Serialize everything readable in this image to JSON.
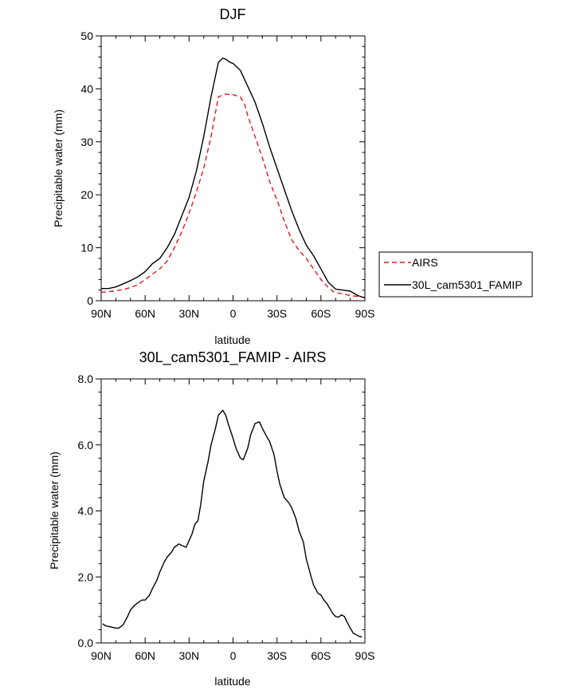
{
  "chart_data": [
    {
      "type": "line",
      "title": "DJF",
      "xlabel": "latitude",
      "ylabel": "Precipitable water (mm)",
      "xlim": [
        90,
        -90
      ],
      "ylim": [
        0,
        50
      ],
      "x_ticks": [
        90,
        60,
        30,
        0,
        -30,
        -60,
        -90
      ],
      "x_tick_labels": [
        "90N",
        "60N",
        "30N",
        "0",
        "30S",
        "60S",
        "90S"
      ],
      "y_ticks": [
        0,
        10,
        20,
        30,
        40,
        50
      ],
      "y_tick_labels": [
        "0",
        "10",
        "20",
        "30",
        "40",
        "50"
      ],
      "legend": {
        "placement": "right"
      },
      "series": [
        {
          "name": "AIRS",
          "color": "#e0191e",
          "dashed": true,
          "x": [
            90,
            85,
            80,
            75,
            70,
            65,
            60,
            55,
            50,
            45,
            40,
            35,
            30,
            25,
            20,
            15,
            10,
            5,
            2,
            0,
            -5,
            -8,
            -10,
            -15,
            -20,
            -25,
            -30,
            -35,
            -40,
            -45,
            -50,
            -55,
            -60,
            -65,
            -68,
            -70,
            -75,
            -80,
            -85,
            -88,
            -90
          ],
          "values": [
            1.6,
            1.7,
            1.9,
            2.1,
            2.5,
            3.0,
            4.0,
            5.0,
            6.0,
            7.5,
            10.0,
            13.0,
            16.5,
            20.5,
            25.0,
            31.0,
            38.5,
            39.0,
            38.9,
            38.9,
            38.5,
            37.0,
            35.0,
            31.0,
            27.0,
            22.5,
            19.0,
            15.0,
            11.5,
            9.5,
            8.0,
            6.0,
            4.0,
            2.5,
            1.8,
            1.5,
            1.3,
            1.0,
            0.8,
            0.7,
            0.6
          ]
        },
        {
          "name": "30L_cam5301_FAMIP",
          "color": "#000000",
          "dashed": false,
          "x": [
            90,
            85,
            80,
            75,
            70,
            65,
            60,
            55,
            50,
            45,
            40,
            35,
            30,
            25,
            20,
            15,
            10,
            7,
            5,
            2,
            0,
            -5,
            -10,
            -15,
            -20,
            -25,
            -30,
            -35,
            -40,
            -45,
            -50,
            -55,
            -60,
            -65,
            -70,
            -75,
            -80,
            -85,
            -88,
            -90
          ],
          "values": [
            2.3,
            2.3,
            2.6,
            3.2,
            3.8,
            4.5,
            5.5,
            7.0,
            8.0,
            10.0,
            12.5,
            16.0,
            19.5,
            24.5,
            31.0,
            38.5,
            45.0,
            45.8,
            45.6,
            45.0,
            44.8,
            43.5,
            40.5,
            37.5,
            33.5,
            29.0,
            25.0,
            21.0,
            17.0,
            13.5,
            10.5,
            8.5,
            6.0,
            3.5,
            2.2,
            2.0,
            1.8,
            1.0,
            0.7,
            0.6
          ]
        }
      ]
    },
    {
      "type": "line",
      "title": "30L_cam5301_FAMIP - AIRS",
      "xlabel": "latitude",
      "ylabel": "Precipitable water (mm)",
      "xlim": [
        90,
        -90
      ],
      "ylim": [
        0,
        8
      ],
      "x_ticks": [
        90,
        60,
        30,
        0,
        -30,
        -60,
        -90
      ],
      "x_tick_labels": [
        "90N",
        "60N",
        "30N",
        "0",
        "30S",
        "60S",
        "90S"
      ],
      "y_ticks": [
        0,
        2,
        4,
        6,
        8
      ],
      "y_tick_labels": [
        "0.0",
        "2.0",
        "4.0",
        "6.0",
        "8.0"
      ],
      "series": [
        {
          "color": "#000000",
          "dashed": false,
          "x": [
            89,
            87,
            85,
            82,
            80,
            78,
            75,
            72,
            70,
            67,
            64,
            62,
            60,
            57,
            55,
            52,
            50,
            47,
            45,
            42,
            40,
            37,
            35,
            32,
            30,
            28,
            26,
            24,
            22,
            20,
            17,
            15,
            12,
            10,
            7,
            5,
            3,
            0,
            -2,
            -5,
            -7,
            -10,
            -12,
            -15,
            -18,
            -20,
            -23,
            -25,
            -28,
            -30,
            -32,
            -35,
            -38,
            -40,
            -43,
            -45,
            -48,
            -50,
            -53,
            -55,
            -58,
            -60,
            -62,
            -64,
            -66,
            -68,
            -70,
            -72,
            -74,
            -76,
            -78,
            -80,
            -82,
            -84,
            -86,
            -88
          ],
          "values": [
            0.58,
            0.52,
            0.5,
            0.47,
            0.45,
            0.45,
            0.55,
            0.8,
            1.0,
            1.15,
            1.25,
            1.3,
            1.3,
            1.45,
            1.65,
            1.9,
            2.15,
            2.45,
            2.6,
            2.75,
            2.9,
            3.0,
            2.95,
            2.9,
            3.1,
            3.3,
            3.6,
            3.7,
            4.2,
            4.9,
            5.5,
            6.0,
            6.5,
            6.9,
            7.05,
            6.9,
            6.6,
            6.2,
            5.9,
            5.6,
            5.55,
            5.9,
            6.3,
            6.65,
            6.7,
            6.5,
            6.25,
            6.1,
            5.7,
            5.2,
            4.8,
            4.4,
            4.25,
            4.1,
            3.75,
            3.4,
            3.05,
            2.55,
            2.05,
            1.75,
            1.5,
            1.45,
            1.3,
            1.2,
            1.05,
            0.9,
            0.8,
            0.78,
            0.85,
            0.8,
            0.62,
            0.45,
            0.3,
            0.25,
            0.2,
            0.18
          ]
        }
      ]
    }
  ]
}
